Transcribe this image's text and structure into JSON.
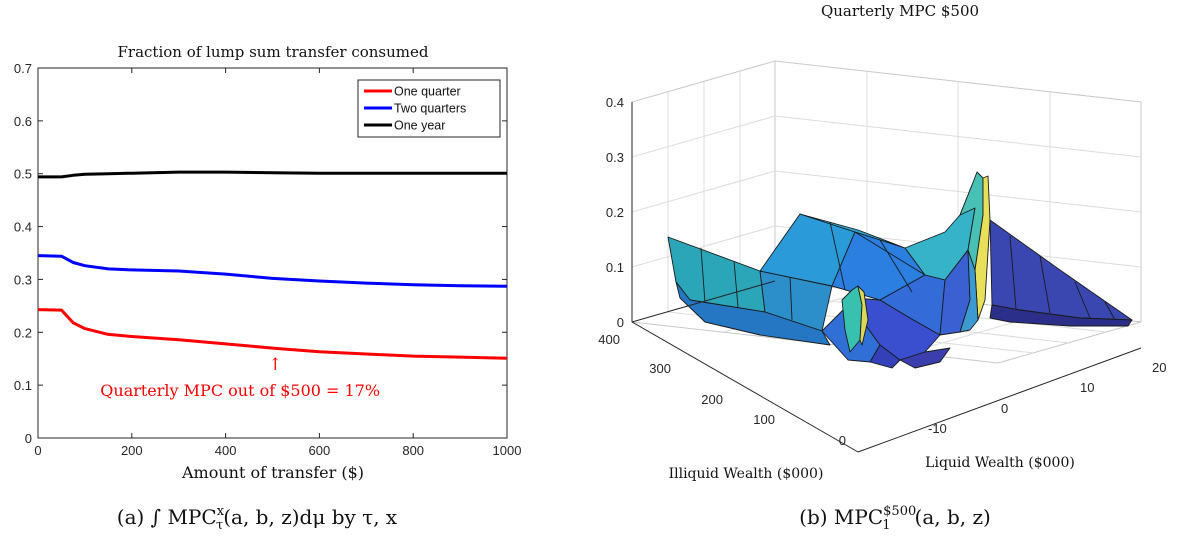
{
  "chart_data": [
    {
      "type": "line",
      "title": "Fraction of lump sum transfer consumed",
      "xlabel": "Amount of transfer ($)",
      "ylabel": "",
      "xlim": [
        0,
        1000
      ],
      "ylim": [
        0,
        0.7
      ],
      "xticks": [
        "0",
        "200",
        "400",
        "600",
        "800",
        "1000"
      ],
      "yticks": [
        "0",
        "0.1",
        "0.2",
        "0.3",
        "0.4",
        "0.5",
        "0.6",
        "0.7"
      ],
      "grid": false,
      "legend_position": "top-right",
      "series": [
        {
          "name": "One quarter",
          "color": "#ff0000",
          "x": [
            0,
            50,
            75,
            100,
            150,
            200,
            300,
            400,
            500,
            600,
            700,
            800,
            900,
            1000
          ],
          "y": [
            0.243,
            0.242,
            0.218,
            0.207,
            0.196,
            0.192,
            0.186,
            0.178,
            0.17,
            0.163,
            0.159,
            0.155,
            0.153,
            0.151
          ]
        },
        {
          "name": "Two quarters",
          "color": "#0000ff",
          "x": [
            0,
            50,
            75,
            100,
            150,
            200,
            300,
            400,
            500,
            600,
            700,
            800,
            900,
            1000
          ],
          "y": [
            0.345,
            0.344,
            0.332,
            0.326,
            0.32,
            0.318,
            0.316,
            0.31,
            0.302,
            0.297,
            0.293,
            0.29,
            0.288,
            0.287
          ]
        },
        {
          "name": "One year",
          "color": "#000000",
          "x": [
            0,
            50,
            75,
            100,
            150,
            200,
            300,
            400,
            500,
            600,
            700,
            800,
            900,
            1000
          ],
          "y": [
            0.494,
            0.494,
            0.497,
            0.499,
            0.5,
            0.501,
            0.503,
            0.503,
            0.502,
            0.501,
            0.501,
            0.501,
            0.501,
            0.501
          ]
        }
      ],
      "annotation": {
        "arrow": "↑",
        "text": "Quarterly MPC out of $500 = 17%",
        "x": 510,
        "y": 0.17,
        "color": "#ff0000"
      },
      "caption": "(a) ∫ MPCτx(a, b, z)dμ by τ, x"
    },
    {
      "type": "surface",
      "title": "Quarterly MPC $500",
      "xlabel": "Liquid Wealth ($000)",
      "ylabel": "Illiquid Wealth ($000)",
      "zlim": [
        0,
        0.4
      ],
      "xticks": [
        "-10",
        "0",
        "10",
        "20"
      ],
      "yticks": [
        "0",
        "100",
        "200",
        "300",
        "400"
      ],
      "zticks": [
        "0",
        "0.1",
        "0.2",
        "0.3",
        "0.4"
      ],
      "grid": true,
      "caption": "(b) MPC1$500(a, b, z)"
    }
  ],
  "captions": {
    "left_prefix": "(a) ∫ MPC",
    "left_sup": "x",
    "left_sub": "τ",
    "left_suffix": "(a, b, z)dμ by τ, x",
    "right_prefix": "(b) MPC",
    "right_sup": "$500",
    "right_sub": "1",
    "right_suffix": "(a, b, z)"
  }
}
